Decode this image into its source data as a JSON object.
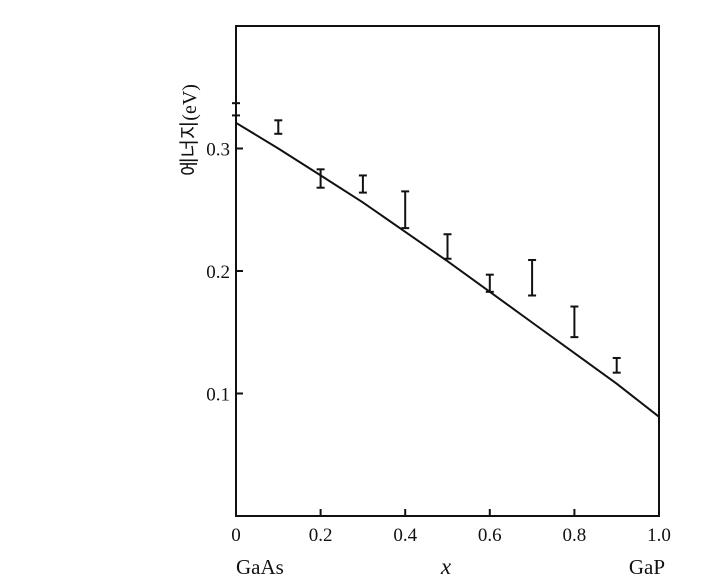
{
  "chart_data": {
    "type": "scatter",
    "title": "",
    "ylabel": "에너지(eV)",
    "xlabel": "x",
    "x_end_labels": {
      "left": "GaAs",
      "right": "GaP"
    },
    "xlim": [
      0,
      1.0
    ],
    "ylim": [
      0,
      0.4
    ],
    "x_ticks": [
      0,
      0.2,
      0.4,
      0.6,
      0.8,
      1.0
    ],
    "x_tick_labels": [
      "0",
      "0.2",
      "0.4",
      "0.6",
      "0.8",
      "1.0"
    ],
    "y_ticks": [
      0.1,
      0.2,
      0.3
    ],
    "y_tick_labels": [
      "0.1",
      "0.2",
      "0.3"
    ],
    "grid": false,
    "series": [
      {
        "kind": "error-bars",
        "points": [
          {
            "x": 0.0,
            "low": 0.327,
            "high": 0.337
          },
          {
            "x": 0.1,
            "low": 0.312,
            "high": 0.323
          },
          {
            "x": 0.2,
            "low": 0.268,
            "high": 0.283
          },
          {
            "x": 0.3,
            "low": 0.264,
            "high": 0.278
          },
          {
            "x": 0.4,
            "low": 0.235,
            "high": 0.265
          },
          {
            "x": 0.5,
            "low": 0.21,
            "high": 0.23
          },
          {
            "x": 0.6,
            "low": 0.183,
            "high": 0.197
          },
          {
            "x": 0.7,
            "low": 0.18,
            "high": 0.209
          },
          {
            "x": 0.8,
            "low": 0.146,
            "high": 0.171
          },
          {
            "x": 0.9,
            "low": 0.117,
            "high": 0.129
          }
        ]
      },
      {
        "kind": "line",
        "x": [
          0.0,
          0.1,
          0.2,
          0.3,
          0.4,
          0.5,
          0.6,
          0.7,
          0.8,
          0.9,
          1.0
        ],
        "y": [
          0.321,
          0.3,
          0.278,
          0.256,
          0.232,
          0.208,
          0.183,
          0.158,
          0.133,
          0.108,
          0.081
        ]
      }
    ]
  }
}
